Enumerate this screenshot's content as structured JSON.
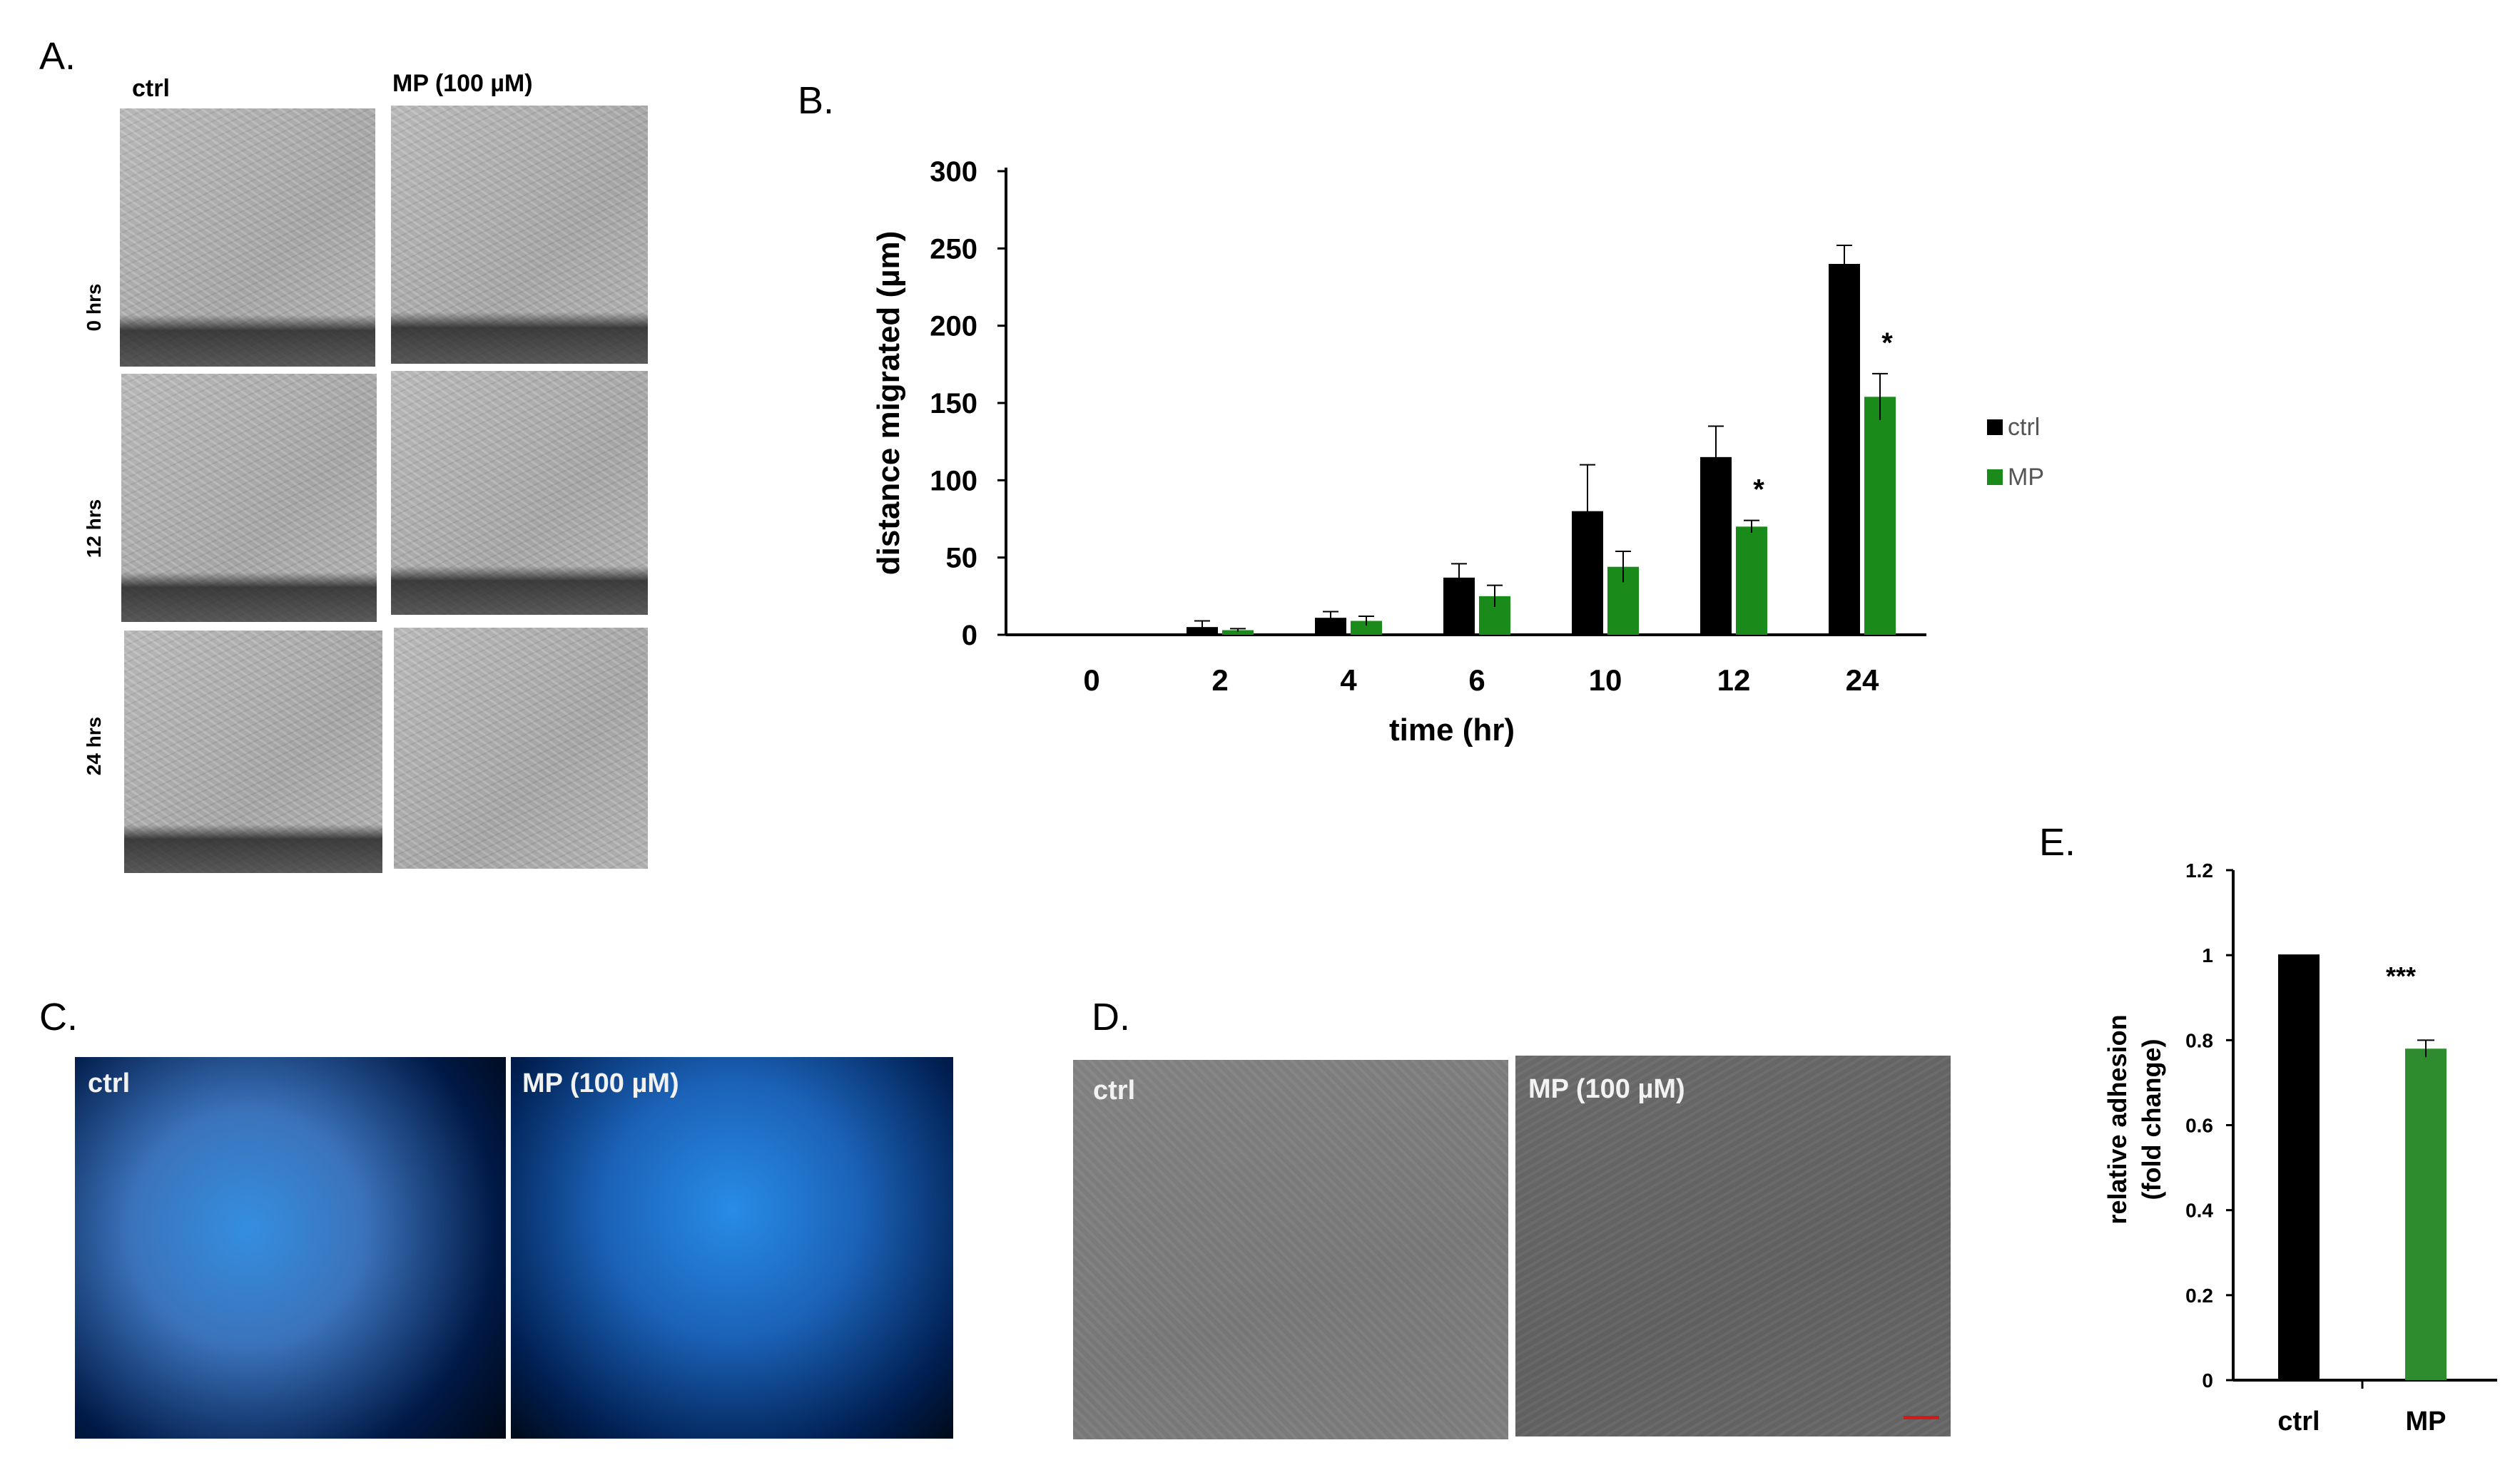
{
  "panels": {
    "a": {
      "letter": "A.",
      "col_labels": [
        "ctrl",
        "MP  (100 µM)"
      ],
      "row_labels": [
        "0 hrs",
        "12 hrs",
        "24 hrs"
      ]
    },
    "b": {
      "letter": "B."
    },
    "c": {
      "letter": "C.",
      "labels": [
        "ctrl",
        "MP  (100 µM)"
      ]
    },
    "d": {
      "letter": "D.",
      "labels": [
        "ctrl",
        "MP  (100 µM)"
      ]
    },
    "e": {
      "letter": "E."
    }
  },
  "colors": {
    "ctrl": "#000000",
    "mp": "#1a8a1a",
    "mp_e": "#2e8b2e",
    "scale_bar": "#d11a1a"
  },
  "chart_data": [
    {
      "type": "bar",
      "panel": "B",
      "categories": [
        "0",
        "2",
        "4",
        "6",
        "10",
        "12",
        "24"
      ],
      "series": [
        {
          "name": "ctrl",
          "values": [
            0,
            5,
            11,
            37,
            80,
            115,
            240
          ],
          "errors": [
            0,
            4,
            4,
            9,
            30,
            20,
            12
          ]
        },
        {
          "name": "MP",
          "values": [
            0,
            3,
            9,
            25,
            44,
            70,
            154
          ],
          "errors": [
            0,
            1,
            3,
            7,
            10,
            4,
            15
          ]
        }
      ],
      "significance": [
        {
          "category": "12",
          "marker": "*"
        },
        {
          "category": "24",
          "marker": "*"
        }
      ],
      "xlabel": "time (hr)",
      "ylabel": "distance migrated (µm)",
      "ylim": [
        0,
        300
      ],
      "yticks": [
        "0",
        "50",
        "100",
        "150",
        "200",
        "250",
        "300"
      ],
      "legend": {
        "position": "right",
        "entries": [
          "ctrl",
          "MP"
        ]
      },
      "grid": false
    },
    {
      "type": "bar",
      "panel": "E",
      "categories": [
        "ctrl",
        "MP"
      ],
      "values": [
        1.0,
        0.78
      ],
      "errors": [
        0.0,
        0.02
      ],
      "significance": [
        {
          "category": "MP",
          "marker": "***"
        }
      ],
      "ylabel_lines": [
        "relative adhesion",
        "(fold change)"
      ],
      "ylim": [
        0,
        1.2
      ],
      "yticks": [
        "0",
        "0.2",
        "0.4",
        "0.6",
        "0.8",
        "1",
        "1.2"
      ],
      "grid": false
    }
  ]
}
